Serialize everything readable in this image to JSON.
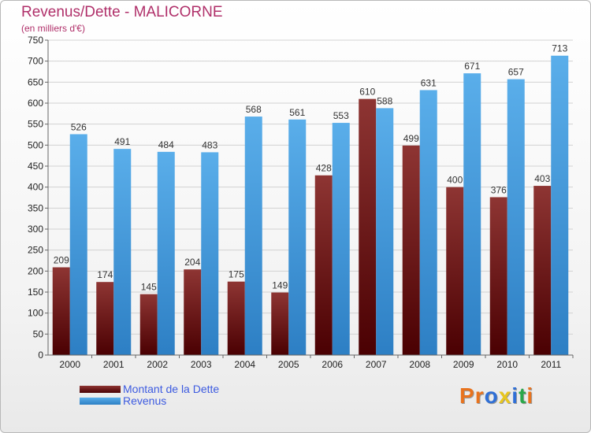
{
  "title": "Revenus/Dette - MALICORNE",
  "subtitle": "(en milliers d'€)",
  "logo": {
    "text": "Proxiti",
    "letter_colors": [
      "#e8731e",
      "#e8731e",
      "#2f6fd6",
      "#e8c61e",
      "#2f6fd6",
      "#2aa84a",
      "#e8731e"
    ]
  },
  "colors": {
    "dette_top": "#8e3533",
    "dette_bottom": "#4a0002",
    "revenus_top": "#5aaeea",
    "revenus_bottom": "#2d7fc4",
    "grid": "#d2d2d2",
    "axis": "#666666"
  },
  "chart_data": {
    "type": "bar",
    "title": "Revenus/Dette - MALICORNE",
    "ylabel": "(en milliers d'€)",
    "xlabel": "",
    "ylim": [
      0,
      750
    ],
    "yticks": [
      0,
      50,
      100,
      150,
      200,
      250,
      300,
      350,
      400,
      450,
      500,
      550,
      600,
      650,
      700,
      750
    ],
    "grid": true,
    "legend_position": "bottom-left",
    "categories": [
      "2000",
      "2001",
      "2002",
      "2003",
      "2004",
      "2005",
      "2006",
      "2007",
      "2008",
      "2009",
      "2010",
      "2011"
    ],
    "series": [
      {
        "name": "Montant de la Dette",
        "values": [
          209,
          174,
          145,
          204,
          175,
          149,
          428,
          610,
          499,
          400,
          376,
          403
        ]
      },
      {
        "name": "Revenus",
        "values": [
          526,
          491,
          484,
          483,
          568,
          561,
          553,
          588,
          631,
          671,
          657,
          713
        ]
      }
    ]
  }
}
